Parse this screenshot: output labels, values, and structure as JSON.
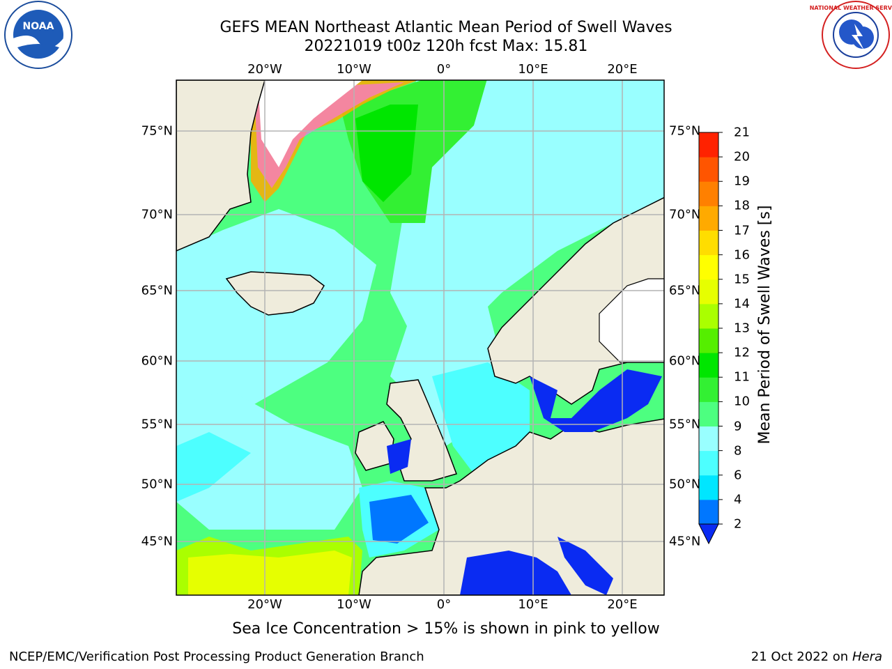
{
  "header": {
    "title_line1": "GEFS MEAN Northeast Atlantic Mean Period of Swell Waves",
    "title_line2": "20221019 t00z 120h fcst   Max: 15.81"
  },
  "logos": {
    "left": "noaa-logo",
    "right": "national-weather-service-logo"
  },
  "map": {
    "lon_labels": [
      "20°W",
      "10°W",
      "0°",
      "10°E",
      "20°E"
    ],
    "lat_labels": [
      "75°N",
      "70°N",
      "65°N",
      "60°N",
      "55°N",
      "50°N",
      "45°N"
    ]
  },
  "colorbar": {
    "title": "Mean Period of Swell Waves [s]",
    "ticks": [
      "2",
      "4",
      "6",
      "8",
      "9",
      "10",
      "11",
      "12",
      "13",
      "14",
      "15",
      "16",
      "17",
      "18",
      "19",
      "20",
      "21"
    ],
    "colors": [
      "#0a2bf2",
      "#0077ff",
      "#00e6ff",
      "#4dffff",
      "#99ffff",
      "#4dff80",
      "#33f033",
      "#00e600",
      "#55ee00",
      "#aaff00",
      "#e6ff00",
      "#ffff00",
      "#ffdd00",
      "#ffaa00",
      "#ff8000",
      "#ff5500",
      "#ff2200",
      "#ff0000"
    ]
  },
  "note": "Sea Ice Concentration > 15% is shown in pink to yellow",
  "footer": {
    "left": "NCEP/EMC/Verification Post Processing Product Generation Branch",
    "date": "21 Oct 2022 on ",
    "host": "Hera"
  }
}
